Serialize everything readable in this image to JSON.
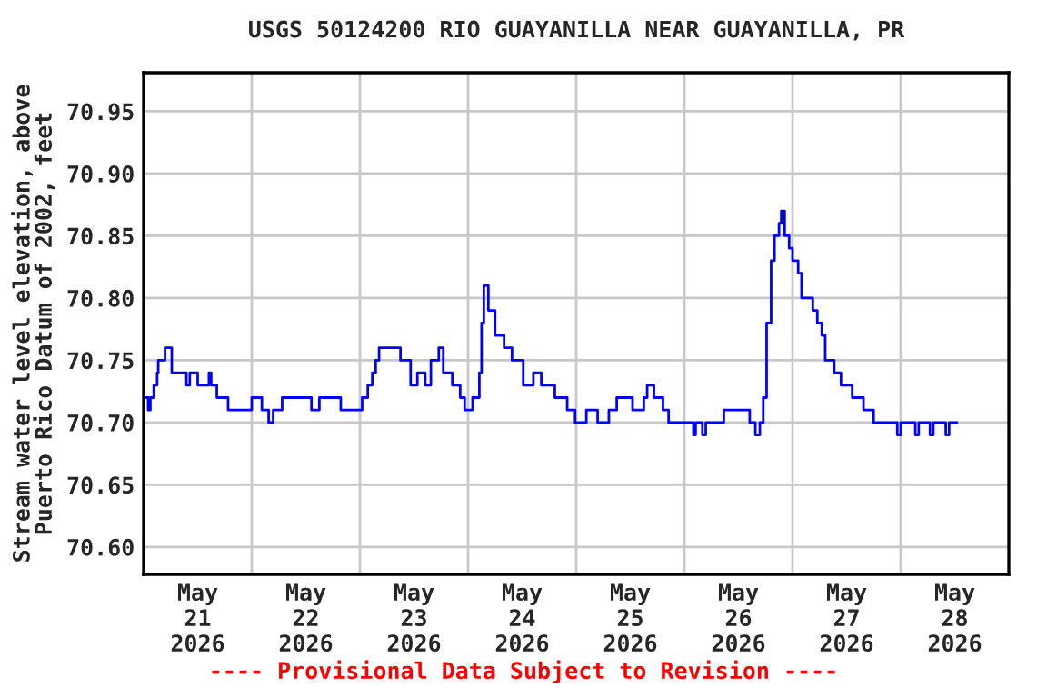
{
  "chart_data": {
    "type": "step",
    "title": "USGS 50124200 RIO GUAYANILLA NEAR GUAYANILLA, PR",
    "ylabel": "Stream water level elevation, above\nPuerto Rico Datum of 2002, feet",
    "annotations": [
      "---- Provisional Data Subject to Revision ----"
    ],
    "xlim": [
      "2026-05-21",
      "2026-05-29"
    ],
    "xticks": [
      {
        "value": "2026-05-21T12:00",
        "label": "May\n21\n2026"
      },
      {
        "value": "2026-05-22T12:00",
        "label": "May\n22\n2026"
      },
      {
        "value": "2026-05-23T12:00",
        "label": "May\n23\n2026"
      },
      {
        "value": "2026-05-24T12:00",
        "label": "May\n24\n2026"
      },
      {
        "value": "2026-05-25T12:00",
        "label": "May\n25\n2026"
      },
      {
        "value": "2026-05-26T12:00",
        "label": "May\n26\n2026"
      },
      {
        "value": "2026-05-27T12:00",
        "label": "May\n27\n2026"
      },
      {
        "value": "2026-05-28T12:00",
        "label": "May\n28\n2026"
      },
      {
        "value": "2026-05-22",
        "label": null
      },
      {
        "value": "2026-05-23",
        "label": null
      },
      {
        "value": "2026-05-24",
        "label": null
      },
      {
        "value": "2026-05-25",
        "label": null
      },
      {
        "value": "2026-05-26",
        "label": null
      },
      {
        "value": "2026-05-27",
        "label": null
      },
      {
        "value": "2026-05-28",
        "label": null
      }
    ],
    "ylim": [
      70.578,
      70.981
    ],
    "yticks": [
      {
        "value": 70.6,
        "label": "70.60"
      },
      {
        "value": 70.65,
        "label": "70.65"
      },
      {
        "value": 70.7,
        "label": "70.70"
      },
      {
        "value": 70.75,
        "label": "70.75"
      },
      {
        "value": 70.8,
        "label": "70.80"
      },
      {
        "value": 70.85,
        "label": "70.85"
      },
      {
        "value": 70.9,
        "label": "70.90"
      },
      {
        "value": 70.95,
        "label": "70.95"
      }
    ],
    "grid": true,
    "series": [
      {
        "color": "#0000ff",
        "x": [
          "2026-05-21T00:15",
          "2026-05-21T01:00",
          "2026-05-21T01:30",
          "2026-05-21T02:15",
          "2026-05-21T03:00",
          "2026-05-21T03:15",
          "2026-05-21T04:15",
          "2026-05-21T04:45",
          "2026-05-21T05:45",
          "2026-05-21T06:15",
          "2026-05-21T09:00",
          "2026-05-21T09:30",
          "2026-05-21T10:15",
          "2026-05-21T11:30",
          "2026-05-21T12:00",
          "2026-05-21T14:30",
          "2026-05-21T15:00",
          "2026-05-21T16:15",
          "2026-05-21T17:15",
          "2026-05-21T18:45",
          "2026-05-21T21:30",
          "2026-05-22T00:00",
          "2026-05-22T02:15",
          "2026-05-22T03:45",
          "2026-05-22T04:45",
          "2026-05-22T06:45",
          "2026-05-22T10:45",
          "2026-05-22T13:15",
          "2026-05-22T15:00",
          "2026-05-22T18:45",
          "2026-05-22T19:45",
          "2026-05-22T22:45",
          "2026-05-23T00:30",
          "2026-05-23T01:45",
          "2026-05-23T02:45",
          "2026-05-23T03:30",
          "2026-05-23T04:15",
          "2026-05-23T07:45",
          "2026-05-23T09:00",
          "2026-05-23T11:15",
          "2026-05-23T12:45",
          "2026-05-23T14:30",
          "2026-05-23T15:45",
          "2026-05-23T16:45",
          "2026-05-23T17:30",
          "2026-05-23T18:30",
          "2026-05-23T20:30",
          "2026-05-23T22:15",
          "2026-05-23T23:15",
          "2026-05-24T01:00",
          "2026-05-24T02:30",
          "2026-05-24T03:00",
          "2026-05-24T03:30",
          "2026-05-24T04:30",
          "2026-05-24T06:00",
          "2026-05-24T08:00",
          "2026-05-24T09:45",
          "2026-05-24T12:15",
          "2026-05-24T14:30",
          "2026-05-24T16:15",
          "2026-05-24T19:15",
          "2026-05-24T22:00",
          "2026-05-24T23:45",
          "2026-05-25T02:15",
          "2026-05-25T04:45",
          "2026-05-25T07:15",
          "2026-05-25T09:00",
          "2026-05-25T11:15",
          "2026-05-25T12:30",
          "2026-05-25T15:00",
          "2026-05-25T15:45",
          "2026-05-25T17:15",
          "2026-05-25T19:15",
          "2026-05-25T20:30",
          "2026-05-26T00:00",
          "2026-05-26T02:00",
          "2026-05-26T02:30",
          "2026-05-26T04:00",
          "2026-05-26T04:45",
          "2026-05-26T07:45",
          "2026-05-26T08:45",
          "2026-05-26T12:00",
          "2026-05-26T14:30",
          "2026-05-26T15:45",
          "2026-05-26T16:45",
          "2026-05-26T17:30",
          "2026-05-26T18:15",
          "2026-05-26T19:15",
          "2026-05-26T20:00",
          "2026-05-26T21:00",
          "2026-05-26T21:30",
          "2026-05-26T22:15",
          "2026-05-26T23:15",
          "2026-05-27T00:00",
          "2026-05-27T01:15",
          "2026-05-27T02:00",
          "2026-05-27T04:30",
          "2026-05-27T05:30",
          "2026-05-27T06:30",
          "2026-05-27T07:15",
          "2026-05-27T09:15",
          "2026-05-27T10:45",
          "2026-05-27T13:15",
          "2026-05-27T15:45",
          "2026-05-27T18:00",
          "2026-05-27T23:15",
          "2026-05-28T00:00",
          "2026-05-28T02:15",
          "2026-05-28T03:15",
          "2026-05-28T04:00",
          "2026-05-28T06:30",
          "2026-05-28T07:15",
          "2026-05-28T09:30",
          "2026-05-28T10:00",
          "2026-05-28T10:45",
          "2026-05-28T12:30"
        ],
        "values": [
          70.72,
          70.71,
          70.72,
          70.73,
          70.74,
          70.75,
          70.75,
          70.76,
          70.76,
          70.74,
          70.74,
          70.73,
          70.74,
          70.74,
          70.73,
          70.74,
          70.73,
          70.72,
          70.72,
          70.71,
          70.71,
          70.72,
          70.71,
          70.7,
          70.71,
          70.72,
          70.72,
          70.71,
          70.72,
          70.72,
          70.71,
          70.71,
          70.72,
          70.73,
          70.74,
          70.75,
          70.76,
          70.76,
          70.75,
          70.73,
          70.74,
          70.73,
          70.75,
          70.75,
          70.76,
          70.74,
          70.73,
          70.72,
          70.71,
          70.72,
          70.74,
          70.78,
          70.81,
          70.79,
          70.77,
          70.76,
          70.75,
          70.73,
          70.74,
          70.73,
          70.72,
          70.71,
          70.7,
          70.71,
          70.7,
          70.71,
          70.72,
          70.72,
          70.71,
          70.72,
          70.73,
          70.72,
          70.71,
          70.7,
          70.7,
          70.69,
          70.7,
          70.69,
          70.7,
          70.7,
          70.71,
          70.71,
          70.7,
          70.69,
          70.7,
          70.72,
          70.78,
          70.83,
          70.85,
          70.86,
          70.87,
          70.85,
          70.84,
          70.83,
          70.82,
          70.8,
          70.79,
          70.78,
          70.77,
          70.75,
          70.74,
          70.73,
          70.72,
          70.71,
          70.7,
          70.69,
          70.7,
          70.7,
          70.69,
          70.7,
          70.69,
          70.7,
          70.7,
          70.69,
          70.7,
          70.7
        ]
      }
    ]
  }
}
